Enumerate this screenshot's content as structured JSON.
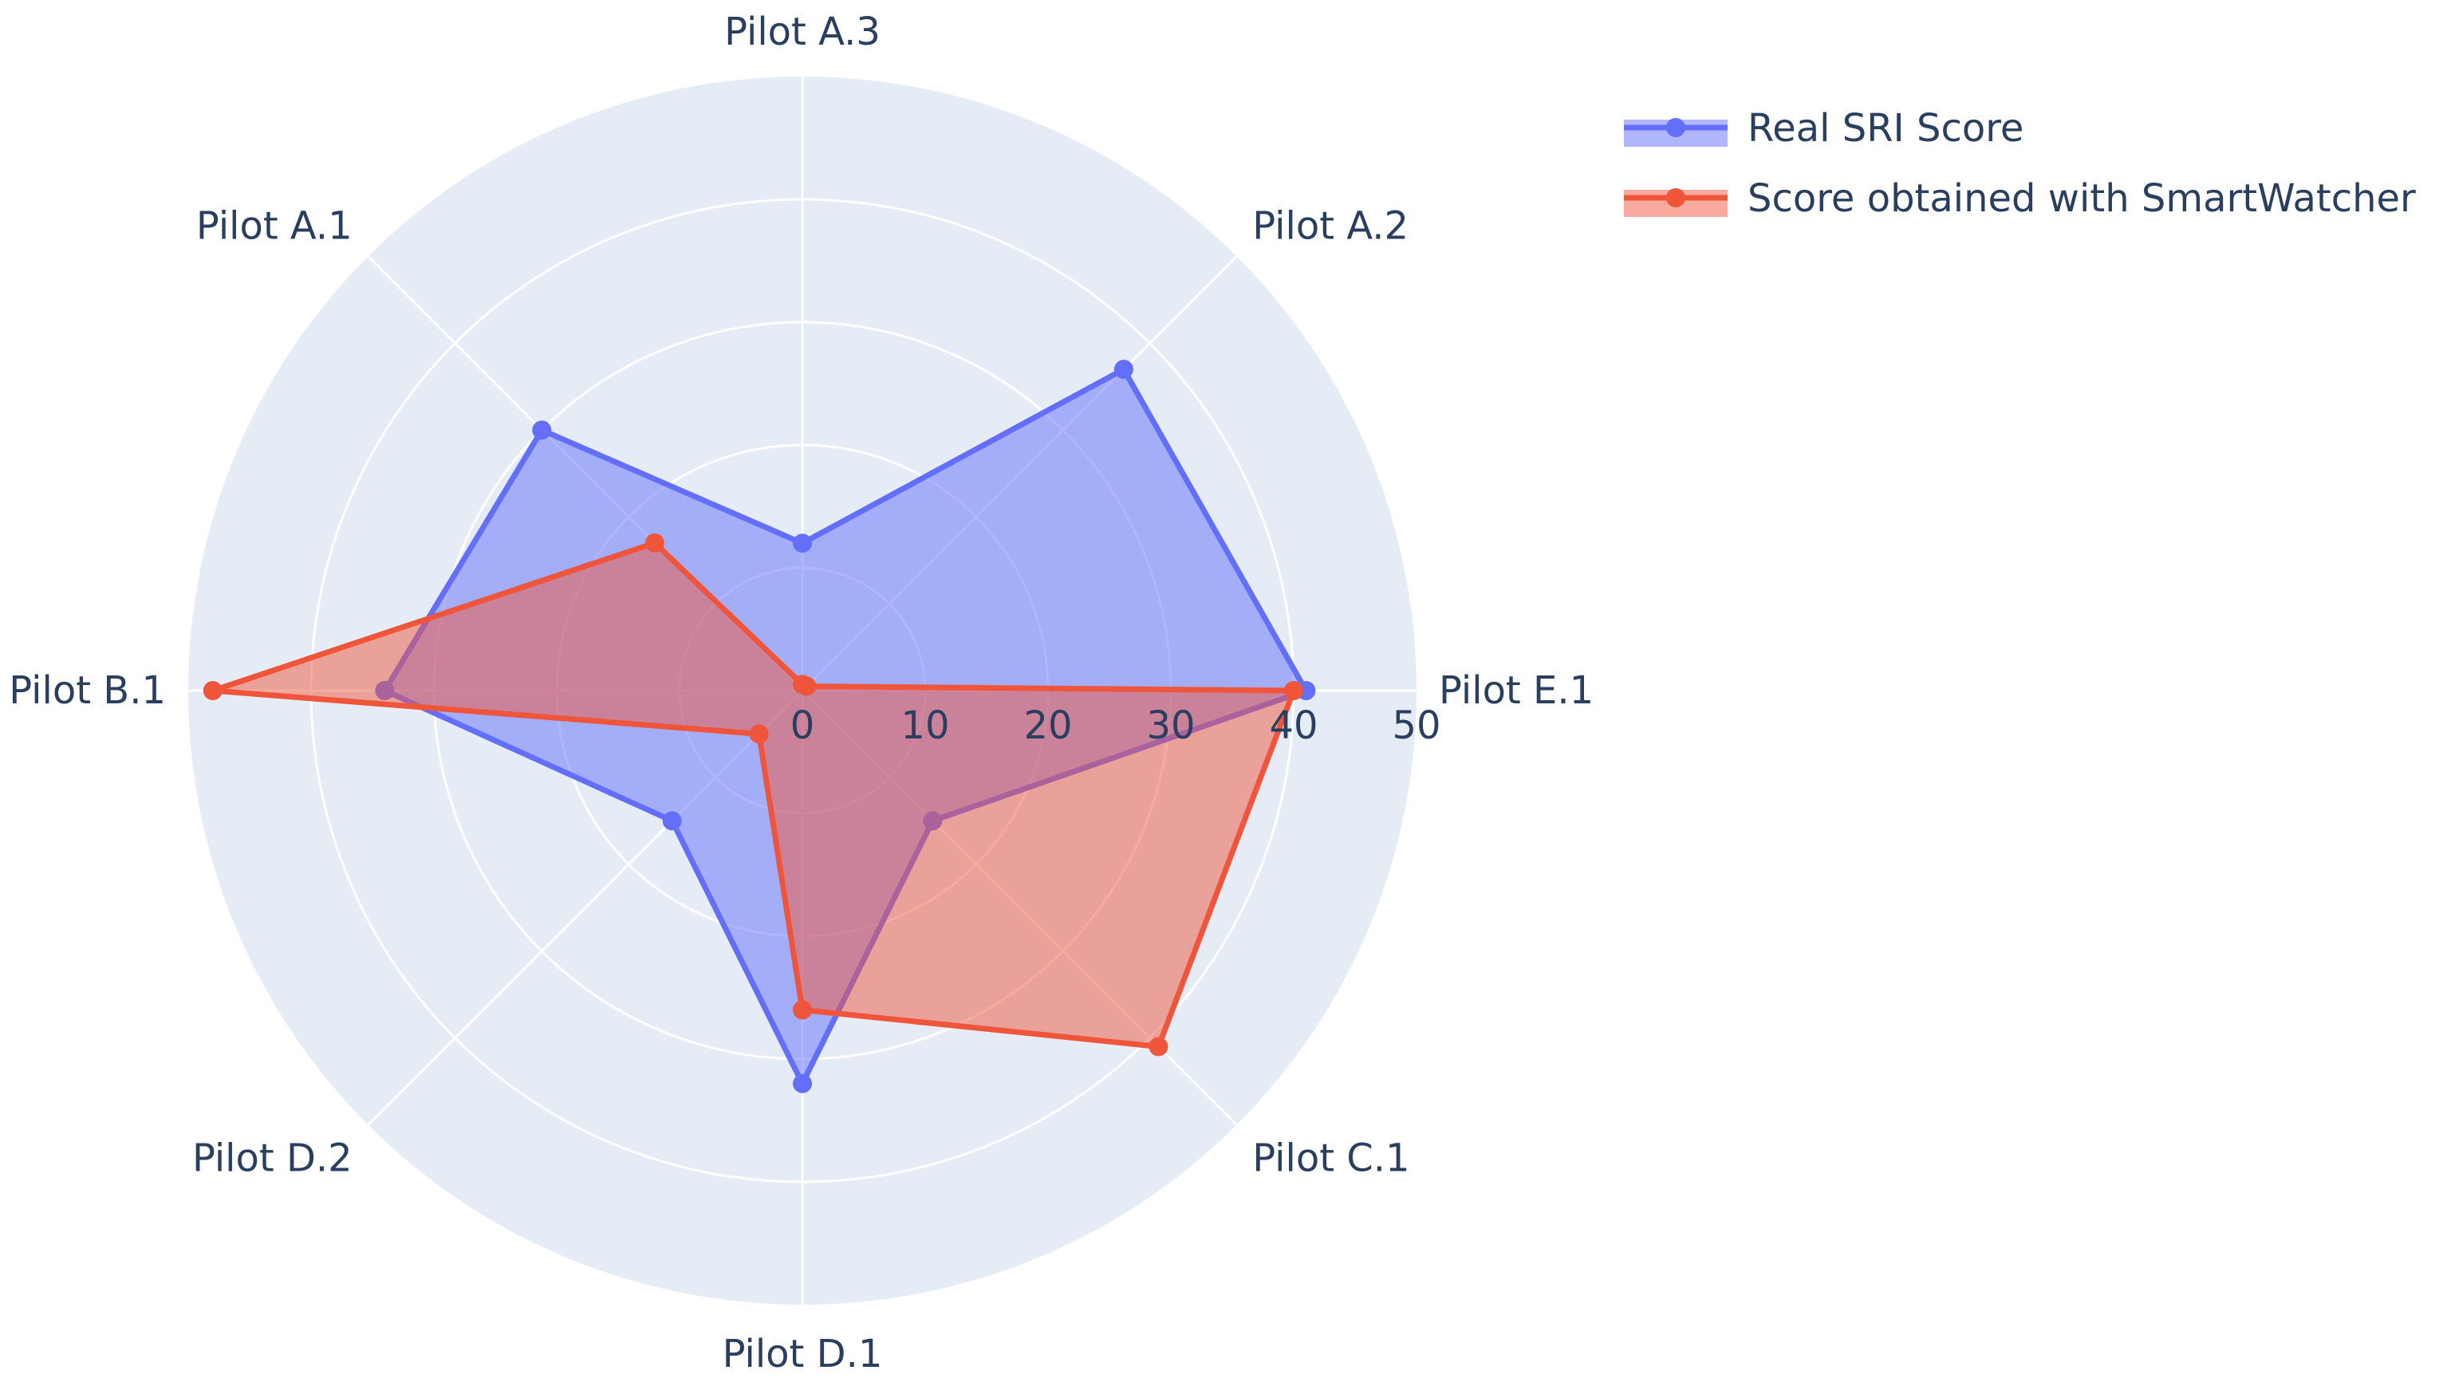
{
  "chart_data": {
    "type": "radar",
    "categories": [
      "Pilot E.1",
      "Pilot A.2",
      "Pilot A.3",
      "Pilot A.1",
      "Pilot B.1",
      "Pilot D.2",
      "Pilot D.1",
      "Pilot C.1"
    ],
    "radial_ticks": [
      "0",
      "10",
      "20",
      "30",
      "40",
      "50"
    ],
    "radial_range": [
      0,
      50
    ],
    "grid": true,
    "legend_position": "top-right",
    "series": [
      {
        "name": "Real SRI Score",
        "values": [
          41,
          37,
          12,
          30,
          34,
          15,
          32,
          15
        ],
        "color": "#636efa"
      },
      {
        "name": "Score obtained with SmartWatcher",
        "values": [
          40,
          0.5,
          0.5,
          17,
          48,
          5,
          26,
          41
        ],
        "color": "#ef553b"
      }
    ]
  },
  "colors": {
    "polar_background": "#e5ecf6",
    "grid": "#ffffff",
    "text": "#2a3f5f"
  }
}
